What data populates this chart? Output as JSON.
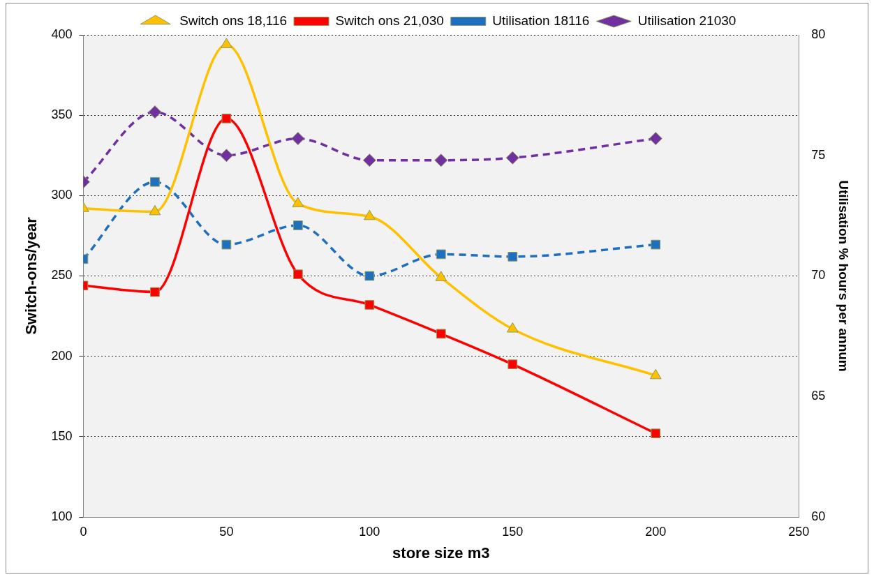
{
  "chart_data": {
    "type": "line",
    "xlabel": "store size m3",
    "ylabel": "Switch-ons/year",
    "y2label": "Utilisation % hours per annum",
    "x": [
      0,
      25,
      50,
      75,
      100,
      125,
      150,
      200
    ],
    "xlim": [
      0,
      250
    ],
    "xticks": [
      0,
      50,
      100,
      150,
      200,
      250
    ],
    "ylim": [
      100,
      400
    ],
    "yticks": [
      100,
      150,
      200,
      250,
      300,
      350,
      400
    ],
    "y2lim": [
      60,
      80
    ],
    "y2ticks": [
      60,
      65,
      70,
      75,
      80
    ],
    "grid": "y",
    "legend": "top",
    "series": [
      {
        "name": "Switch ons 18,116",
        "color": "#ffc000",
        "marker": "triangle",
        "line_style": "solid",
        "values": [
          292,
          290,
          394,
          295,
          287,
          249,
          217,
          188
        ]
      },
      {
        "name": "Switch ons 21,030",
        "color": "#ff0000",
        "marker": "square",
        "line_style": "solid",
        "values": [
          244,
          240,
          348,
          251,
          232,
          214,
          195,
          152
        ]
      },
      {
        "name": "Utilisation 18116",
        "color": "#1f6fc0",
        "marker": "square",
        "line_style": "dashed",
        "axis": "y2",
        "values": [
          70.7,
          73.9,
          71.3,
          72.1,
          70.0,
          70.9,
          70.8,
          71.3
        ]
      },
      {
        "name": "Utilisation 21030",
        "color": "#7030a0",
        "marker": "diamond",
        "line_style": "dashed",
        "axis": "y2",
        "values": [
          73.9,
          76.8,
          75.0,
          75.7,
          74.8,
          74.8,
          74.9,
          75.7
        ]
      }
    ]
  }
}
